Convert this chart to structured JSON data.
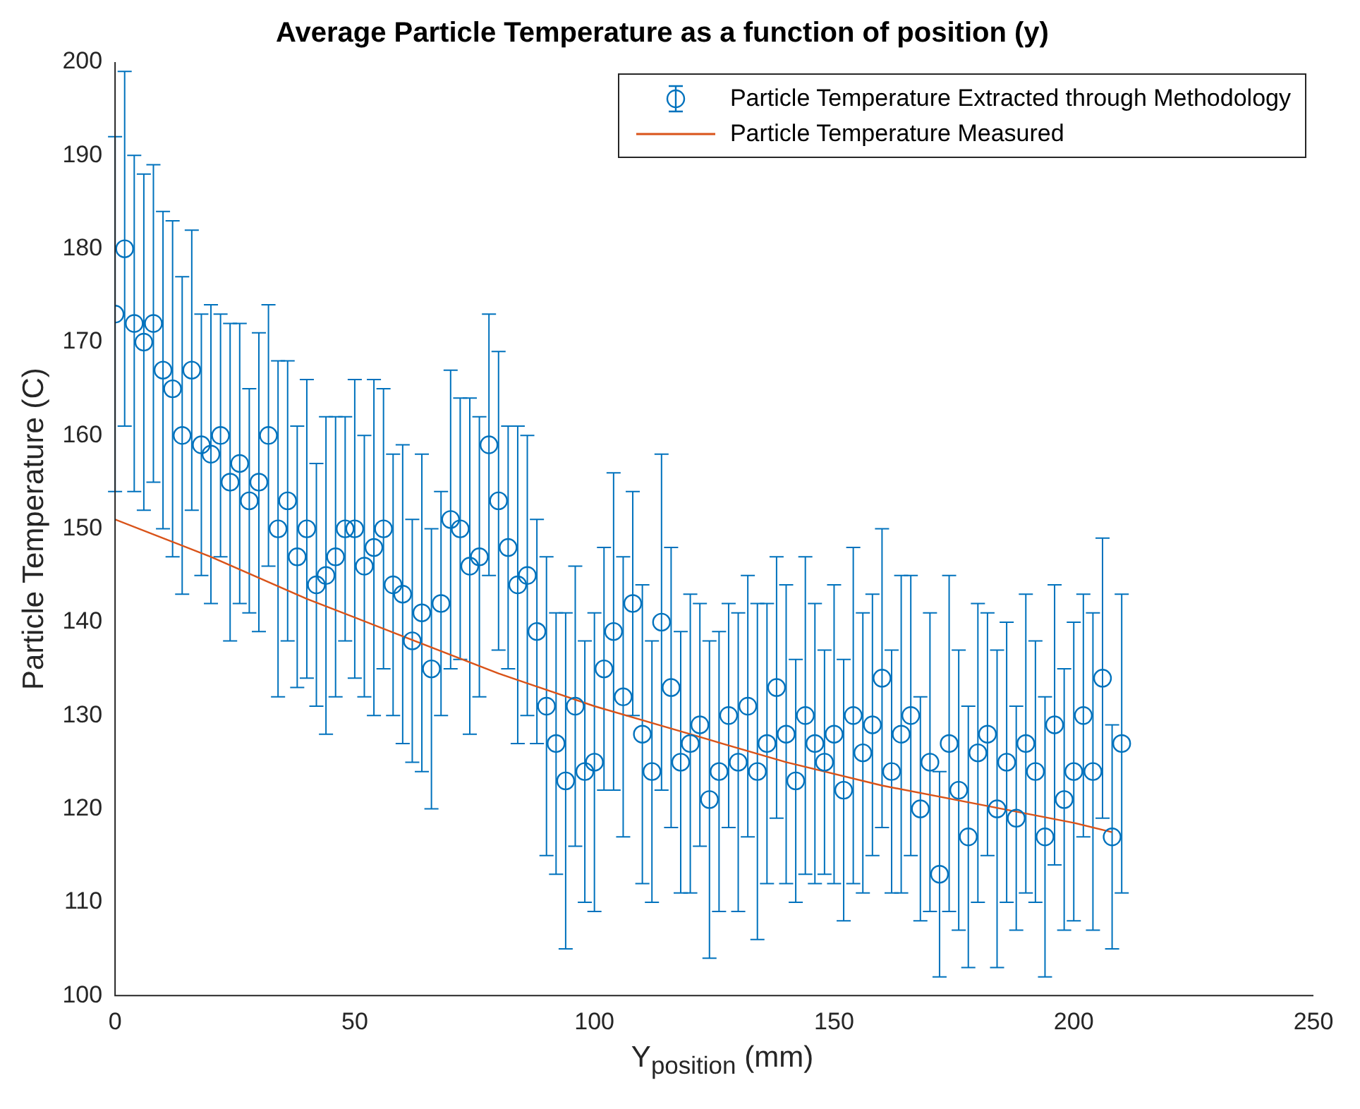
{
  "chart_data": {
    "type": "scatter",
    "title": "Average Particle Temperature as a function of position (y)",
    "xlabel": "Y$_{position}$ (mm)",
    "ylabel": "Particle Temperature (C)",
    "xlim": [
      0,
      250
    ],
    "xticks": [
      0,
      50,
      100,
      150,
      200,
      250
    ],
    "ylim": [
      100,
      200
    ],
    "yticks": [
      100,
      110,
      120,
      130,
      140,
      150,
      160,
      170,
      180,
      190,
      200
    ],
    "grid": false,
    "legend": "top right",
    "series": [
      {
        "name": "Particle Temperature Extracted through Methodology",
        "marker": "circle",
        "color": "#0072bd",
        "x": [
          0,
          2,
          4,
          6,
          8,
          10,
          12,
          14,
          16,
          18,
          20,
          22,
          24,
          26,
          28,
          30,
          32,
          34,
          36,
          38,
          40,
          42,
          44,
          46,
          48,
          50,
          52,
          54,
          56,
          58,
          60,
          62,
          64,
          66,
          68,
          70,
          72,
          74,
          76,
          78,
          80,
          82,
          84,
          86,
          88,
          90,
          92,
          94,
          96,
          98,
          100,
          102,
          104,
          106,
          108,
          110,
          112,
          114,
          116,
          118,
          120,
          122,
          124,
          126,
          128,
          130,
          132,
          134,
          136,
          138,
          140,
          142,
          144,
          146,
          148,
          150,
          152,
          154,
          156,
          158,
          160,
          162,
          164,
          166,
          168,
          170,
          172,
          174,
          176,
          178,
          180,
          182,
          184,
          186,
          188,
          190,
          192,
          194,
          196,
          198,
          200,
          202,
          204,
          206,
          208,
          210
        ],
        "values": [
          173,
          180,
          172,
          170,
          172,
          167,
          165,
          160,
          167,
          159,
          158,
          160,
          155,
          157,
          153,
          155,
          160,
          150,
          153,
          147,
          150,
          144,
          145,
          147,
          150,
          150,
          146,
          148,
          150,
          144,
          143,
          138,
          141,
          135,
          142,
          151,
          150,
          146,
          147,
          159,
          153,
          148,
          144,
          145,
          139,
          131,
          127,
          123,
          131,
          124,
          125,
          135,
          139,
          132,
          142,
          128,
          124,
          140,
          133,
          125,
          127,
          129,
          121,
          124,
          130,
          125,
          131,
          124,
          127,
          133,
          128,
          123,
          130,
          127,
          125,
          128,
          122,
          130,
          126,
          129,
          134,
          124,
          128,
          130,
          120,
          125,
          113,
          127,
          122,
          117,
          126,
          128,
          120,
          125,
          119,
          127,
          124,
          117,
          129,
          121,
          124,
          130,
          124,
          134,
          117,
          127
        ],
        "errors": [
          19,
          19,
          18,
          18,
          17,
          17,
          18,
          17,
          15,
          14,
          16,
          13,
          17,
          15,
          12,
          16,
          14,
          18,
          15,
          14,
          16,
          13,
          17,
          15,
          12,
          16,
          14,
          18,
          15,
          14,
          16,
          13,
          17,
          15,
          12,
          16,
          14,
          18,
          15,
          14,
          16,
          13,
          17,
          15,
          12,
          16,
          14,
          18,
          15,
          14,
          16,
          13,
          17,
          15,
          12,
          16,
          14,
          18,
          15,
          14,
          16,
          13,
          17,
          15,
          12,
          16,
          14,
          18,
          15,
          14,
          16,
          13,
          17,
          15,
          12,
          16,
          14,
          18,
          15,
          14,
          16,
          13,
          17,
          15,
          12,
          16,
          11,
          18,
          15,
          14,
          16,
          13,
          17,
          15,
          12,
          16,
          14,
          15,
          15,
          14,
          16,
          13,
          17,
          15,
          12,
          16
        ]
      },
      {
        "name": "Particle Temperature Measured",
        "type": "line",
        "marker": "none",
        "line_style": "solid",
        "color": "#d95319",
        "x": [
          0,
          20,
          40,
          60,
          80,
          100,
          120,
          140,
          160,
          180,
          200,
          208
        ],
        "values": [
          151,
          147,
          142.5,
          138.5,
          134.5,
          131,
          128,
          125,
          122.5,
          120.5,
          118.5,
          117.5
        ]
      }
    ]
  }
}
